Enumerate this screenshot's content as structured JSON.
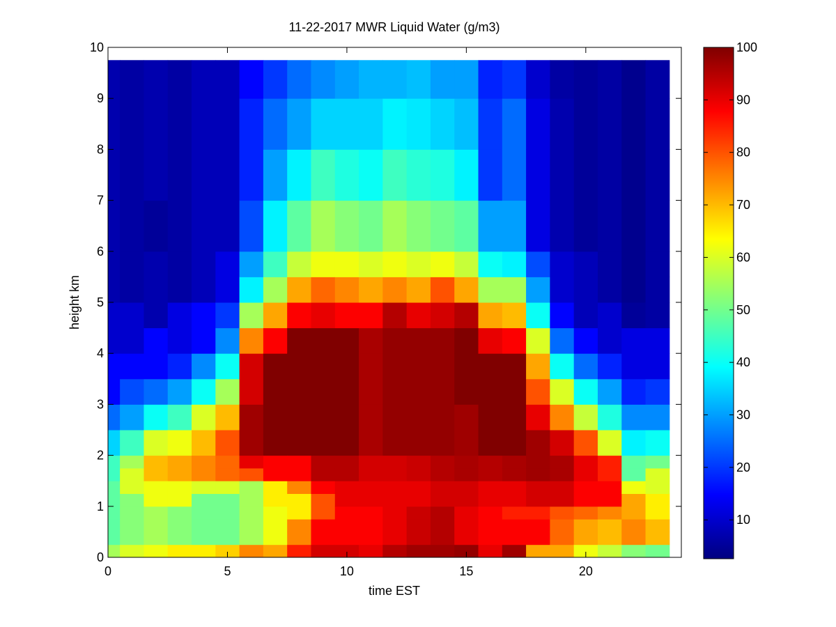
{
  "chart_data": {
    "type": "heatmap",
    "title": "11-22-2017 MWR Liquid Water (g/m3)",
    "x_label": "time EST",
    "y_label": "height km",
    "xlim": [
      0,
      24
    ],
    "ylim": [
      0,
      10
    ],
    "xticks": [
      0,
      5,
      10,
      15,
      20
    ],
    "yticks": [
      0,
      1,
      2,
      3,
      4,
      5,
      6,
      7,
      8,
      9,
      10
    ],
    "colormap": "jet",
    "clim": [
      2.6,
      100
    ],
    "colorbar_ticks": [
      10,
      20,
      30,
      40,
      50,
      60,
      70,
      80,
      90,
      100
    ],
    "x_edges": [
      0,
      0.5,
      1.5,
      2.5,
      3.5,
      4.5,
      5.5,
      6.5,
      7.5,
      8.5,
      9.5,
      10.5,
      11.5,
      12.5,
      13.5,
      14.5,
      15.5,
      16.5,
      17.5,
      18.5,
      19.5,
      20.5,
      21.5,
      22.5,
      23.5
    ],
    "y_edges": [
      0,
      0.25,
      0.5,
      0.75,
      1,
      1.25,
      1.5,
      1.75,
      2,
      2.5,
      3,
      3.5,
      4,
      4.5,
      5,
      5.5,
      6,
      7,
      8,
      9,
      9.75
    ],
    "z": [
      [
        55,
        48,
        48,
        48,
        48,
        48,
        45,
        45,
        35,
        25,
        15,
        15,
        10,
        10,
        7,
        7,
        7,
        7,
        7,
        7
      ],
      [
        60,
        52,
        52,
        52,
        52,
        60,
        60,
        55,
        45,
        30,
        22,
        15,
        10,
        10,
        6,
        6,
        6,
        6,
        6,
        6
      ],
      [
        62,
        55,
        55,
        55,
        62,
        62,
        70,
        70,
        60,
        40,
        25,
        15,
        15,
        7,
        7,
        7,
        5,
        7,
        7,
        7
      ],
      [
        65,
        52,
        52,
        52,
        62,
        62,
        72,
        72,
        62,
        45,
        30,
        18,
        12,
        12,
        6,
        6,
        6,
        6,
        6,
        6
      ],
      [
        65,
        50,
        50,
        50,
        50,
        60,
        75,
        75,
        70,
        60,
        40,
        28,
        15,
        15,
        8,
        8,
        8,
        8,
        8,
        8
      ],
      [
        68,
        50,
        50,
        50,
        50,
        60,
        78,
        78,
        80,
        70,
        55,
        40,
        28,
        20,
        12,
        12,
        8,
        8,
        8,
        8
      ],
      [
        75,
        55,
        55,
        55,
        55,
        55,
        80,
        90,
        97,
        97,
        92,
        92,
        75,
        55,
        38,
        30,
        22,
        18,
        18,
        15
      ],
      [
        72,
        62,
        62,
        62,
        65,
        65,
        88,
        88,
        100,
        100,
        100,
        100,
        88,
        72,
        55,
        45,
        38,
        30,
        25,
        20
      ],
      [
        85,
        75,
        75,
        65,
        65,
        75,
        88,
        88,
        100,
        100,
        100,
        100,
        100,
        88,
        72,
        58,
        48,
        38,
        30,
        25
      ],
      [
        92,
        88,
        88,
        80,
        80,
        88,
        95,
        95,
        100,
        100,
        100,
        100,
        100,
        90,
        78,
        62,
        55,
        45,
        35,
        28
      ],
      [
        92,
        88,
        88,
        88,
        90,
        90,
        95,
        95,
        100,
        100,
        100,
        100,
        100,
        88,
        75,
        62,
        52,
        42,
        35,
        30
      ],
      [
        90,
        88,
        88,
        88,
        90,
        90,
        92,
        92,
        96,
        96,
        96,
        96,
        96,
        88,
        72,
        60,
        50,
        40,
        35,
        32
      ],
      [
        95,
        90,
        90,
        90,
        90,
        90,
        92,
        92,
        98,
        98,
        98,
        98,
        98,
        95,
        75,
        62,
        55,
        45,
        38,
        32
      ],
      [
        97,
        93,
        93,
        93,
        90,
        90,
        93,
        93,
        98,
        98,
        98,
        98,
        98,
        90,
        72,
        60,
        52,
        43,
        37,
        33
      ],
      [
        97,
        95,
        95,
        95,
        92,
        92,
        95,
        95,
        98,
        98,
        98,
        98,
        98,
        92,
        80,
        62,
        50,
        42,
        35,
        30
      ],
      [
        98,
        90,
        90,
        90,
        92,
        92,
        96,
        96,
        97,
        97,
        100,
        100,
        100,
        95,
        72,
        58,
        48,
        38,
        33,
        30
      ],
      [
        90,
        88,
        88,
        88,
        90,
        90,
        95,
        95,
        100,
        100,
        100,
        100,
        90,
        72,
        55,
        40,
        30,
        20,
        20,
        18
      ],
      [
        97,
        88,
        88,
        85,
        90,
        90,
        96,
        96,
        100,
        100,
        100,
        100,
        88,
        70,
        55,
        38,
        30,
        25,
        25,
        20
      ],
      [
        72,
        88,
        88,
        85,
        92,
        92,
        97,
        97,
        97,
        90,
        80,
        72,
        60,
        40,
        30,
        22,
        12,
        12,
        12,
        10
      ],
      [
        72,
        78,
        78,
        80,
        92,
        92,
        96,
        96,
        92,
        75,
        60,
        40,
        25,
        15,
        10,
        10,
        7,
        7,
        7,
        6
      ],
      [
        62,
        72,
        72,
        78,
        88,
        88,
        90,
        90,
        80,
        58,
        40,
        25,
        15,
        8,
        8,
        8,
        5,
        5,
        5,
        5
      ],
      [
        58,
        70,
        70,
        75,
        88,
        88,
        85,
        85,
        60,
        42,
        30,
        18,
        10,
        10,
        6,
        6,
        6,
        6,
        6,
        6
      ],
      [
        52,
        75,
        75,
        72,
        72,
        62,
        48,
        48,
        38,
        28,
        18,
        12,
        12,
        5,
        4,
        4,
        4,
        4,
        4,
        4
      ],
      [
        50,
        70,
        70,
        65,
        65,
        60,
        60,
        50,
        40,
        28,
        20,
        12,
        12,
        6,
        6,
        6,
        6,
        6,
        6,
        6
      ]
    ]
  }
}
